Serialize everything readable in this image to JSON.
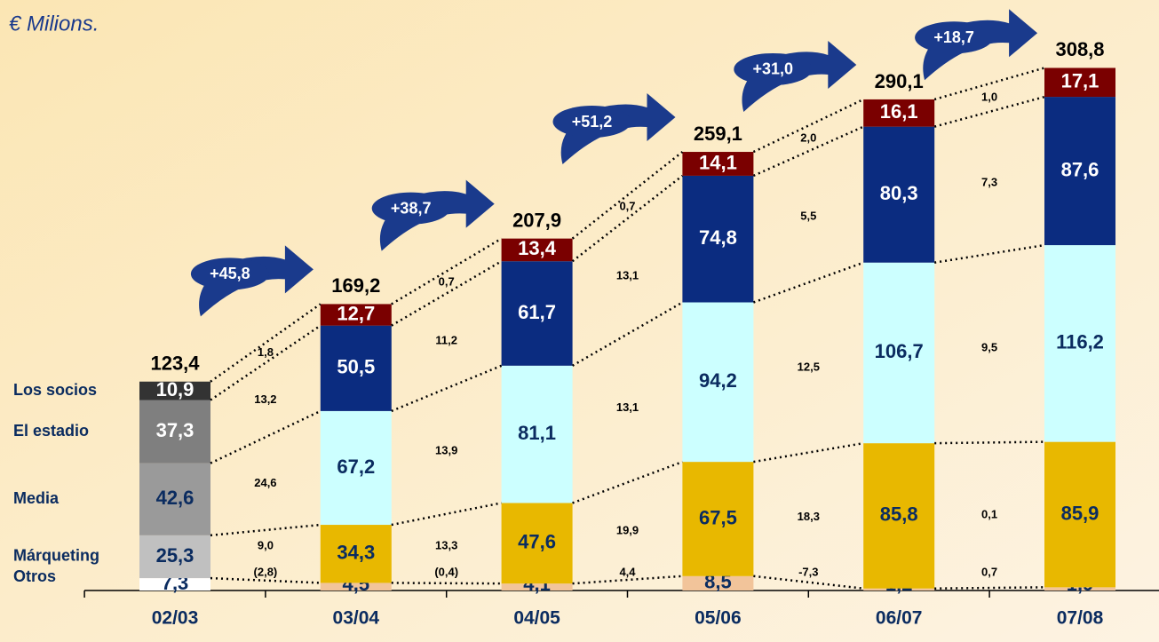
{
  "chart_data": {
    "type": "stacked_bar",
    "subtitle": "€ Milions.",
    "categories": [
      "02/03",
      "03/04",
      "04/05",
      "05/06",
      "06/07",
      "07/08"
    ],
    "ylim": [
      0,
      310
    ],
    "series": [
      {
        "name": "Otros",
        "colors": [
          "#ffffff",
          "#f2c49a",
          "#f2c49a",
          "#f2c49a",
          "#f2c49a",
          "#f2c49a"
        ],
        "values": [
          7.3,
          4.5,
          4.1,
          8.5,
          1.2,
          1.9
        ],
        "value_labels": [
          "7,3",
          "4,5",
          "4,1",
          "8,5",
          "1,2",
          "1,9"
        ],
        "changes": [
          -2.8,
          -0.4,
          4.4,
          -7.3,
          0.7
        ],
        "change_labels": [
          "(2,8)",
          "(0,4)",
          "4,4",
          "-7,3",
          "0,7"
        ]
      },
      {
        "name": "Márqueting",
        "colors": [
          "#c0c0c0",
          "#e8b800",
          "#e8b800",
          "#e8b800",
          "#e8b800",
          "#e8b800"
        ],
        "values": [
          25.3,
          34.3,
          47.6,
          67.5,
          85.8,
          85.9
        ],
        "value_labels": [
          "25,3",
          "34,3",
          "47,6",
          "67,5",
          "85,8",
          "85,9"
        ],
        "changes": [
          9.0,
          13.3,
          19.9,
          18.3,
          0.1
        ],
        "change_labels": [
          "9,0",
          "13,3",
          "19,9",
          "18,3",
          "0,1"
        ]
      },
      {
        "name": "Media",
        "colors": [
          "#9a9a9a",
          "#ccffff",
          "#ccffff",
          "#ccffff",
          "#ccffff",
          "#ccffff"
        ],
        "values": [
          42.6,
          67.2,
          81.1,
          94.2,
          106.7,
          116.2
        ],
        "value_labels": [
          "42,6",
          "67,2",
          "81,1",
          "94,2",
          "106,7",
          "116,2"
        ],
        "changes": [
          24.6,
          13.9,
          13.1,
          12.5,
          9.5
        ],
        "change_labels": [
          "24,6",
          "13,9",
          "13,1",
          "12,5",
          "9,5"
        ]
      },
      {
        "name": "El estadio",
        "colors": [
          "#7f7f7f",
          "#0b2c80",
          "#0b2c80",
          "#0b2c80",
          "#0b2c80",
          "#0b2c80"
        ],
        "values": [
          37.3,
          50.5,
          61.7,
          74.8,
          80.3,
          87.6
        ],
        "value_labels": [
          "37,3",
          "50,5",
          "61,7",
          "74,8",
          "80,3",
          "87,6"
        ],
        "changes": [
          13.2,
          11.2,
          13.1,
          5.5,
          7.3
        ],
        "change_labels": [
          "13,2",
          "11,2",
          "13,1",
          "5,5",
          "7,3"
        ]
      },
      {
        "name": "Los socios",
        "colors": [
          "#333333",
          "#7a0000",
          "#7a0000",
          "#7a0000",
          "#7a0000",
          "#7a0000"
        ],
        "values": [
          10.9,
          12.7,
          13.4,
          14.1,
          16.1,
          17.1
        ],
        "value_labels": [
          "10,9",
          "12,7",
          "13,4",
          "14,1",
          "16,1",
          "17,1"
        ],
        "changes": [
          1.8,
          0.7,
          0.7,
          2.0,
          1.0
        ],
        "change_labels": [
          "1,8",
          "0,7",
          "0,7",
          "2,0",
          "1,0"
        ]
      }
    ],
    "totals": {
      "values": [
        123.4,
        169.2,
        207.9,
        259.1,
        290.1,
        308.8
      ],
      "value_labels": [
        "123,4",
        "169,2",
        "207,9",
        "259,1",
        "290,1",
        "308,8"
      ]
    },
    "growth": {
      "values": [
        45.8,
        38.7,
        51.2,
        31.0,
        18.7
      ],
      "value_labels": [
        "+45,8",
        "+38,7",
        "+51,2",
        "+31,0",
        "+18,7"
      ],
      "color": "#1a3a8c"
    }
  }
}
